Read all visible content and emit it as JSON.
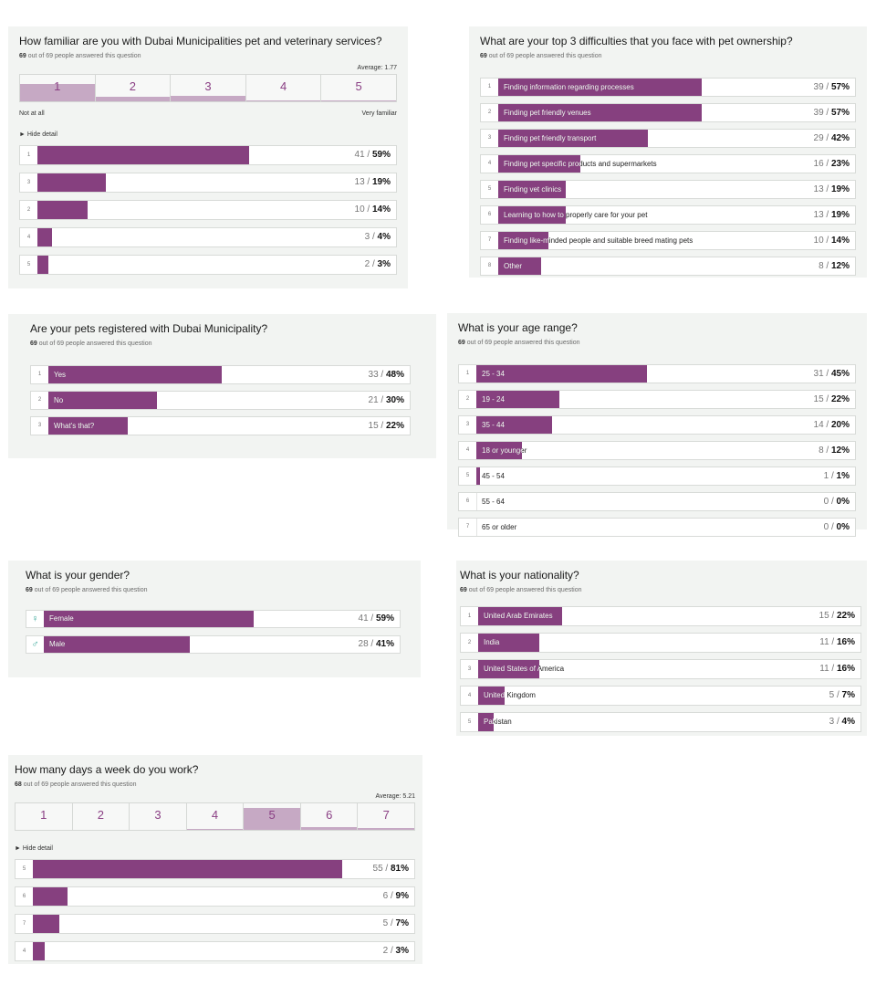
{
  "chart_data": [
    {
      "id": "familiarity",
      "type": "bar",
      "title": "How familiar are you with Dubai Municipalities pet and veterinary services?",
      "answered": "69",
      "answered_text": "out of 69 people answered this question",
      "average": "Average: 1.77",
      "scale": [
        "1",
        "2",
        "3",
        "4",
        "5"
      ],
      "scale_levels": [
        0.59,
        0.14,
        0.19,
        0.04,
        0.03
      ],
      "scale_low": "Not at all",
      "scale_high": "Very familiar",
      "hide_detail": "► Hide detail",
      "rows": [
        {
          "idx": "1",
          "label": "",
          "count": "41",
          "pct": "59%",
          "value": 59
        },
        {
          "idx": "3",
          "label": "",
          "count": "13",
          "pct": "19%",
          "value": 19
        },
        {
          "idx": "2",
          "label": "",
          "count": "10",
          "pct": "14%",
          "value": 14
        },
        {
          "idx": "4",
          "label": "",
          "count": "3",
          "pct": "4%",
          "value": 4
        },
        {
          "idx": "5",
          "label": "",
          "count": "2",
          "pct": "3%",
          "value": 3
        }
      ]
    },
    {
      "id": "difficulties",
      "type": "bar",
      "title": "What are your top 3 difficulties that you face with pet ownership?",
      "answered": "69",
      "answered_text": "out of 69 people answered this question",
      "rows": [
        {
          "idx": "1",
          "label": "Finding information regarding processes",
          "count": "39",
          "pct": "57%",
          "value": 57
        },
        {
          "idx": "2",
          "label": "Finding pet friendly venues",
          "count": "39",
          "pct": "57%",
          "value": 57
        },
        {
          "idx": "3",
          "label": "Finding pet friendly transport",
          "count": "29",
          "pct": "42%",
          "value": 42
        },
        {
          "idx": "4",
          "label": "Finding pet specific products and supermarkets",
          "count": "16",
          "pct": "23%",
          "value": 23
        },
        {
          "idx": "5",
          "label": "Finding vet clinics",
          "count": "13",
          "pct": "19%",
          "value": 19
        },
        {
          "idx": "6",
          "label": "Learning to how to properly care for your pet",
          "count": "13",
          "pct": "19%",
          "value": 19
        },
        {
          "idx": "7",
          "label": "Finding like-minded people and suitable breed mating pets",
          "count": "10",
          "pct": "14%",
          "value": 14
        },
        {
          "idx": "8",
          "label": "Other",
          "count": "8",
          "pct": "12%",
          "value": 12
        }
      ]
    },
    {
      "id": "registered",
      "type": "bar",
      "title": "Are your pets registered with Dubai Municipality?",
      "answered": "69",
      "answered_text": "out of 69 people answered this question",
      "rows": [
        {
          "idx": "1",
          "label": "Yes",
          "count": "33",
          "pct": "48%",
          "value": 48
        },
        {
          "idx": "2",
          "label": "No",
          "count": "21",
          "pct": "30%",
          "value": 30
        },
        {
          "idx": "3",
          "label": "What's that?",
          "count": "15",
          "pct": "22%",
          "value": 22
        }
      ]
    },
    {
      "id": "age",
      "type": "bar",
      "title": "What is your age range?",
      "answered": "69",
      "answered_text": "out of 69 people answered this question",
      "rows": [
        {
          "idx": "1",
          "label": "25 - 34",
          "count": "31",
          "pct": "45%",
          "value": 45
        },
        {
          "idx": "2",
          "label": "19 - 24",
          "count": "15",
          "pct": "22%",
          "value": 22
        },
        {
          "idx": "3",
          "label": "35 - 44",
          "count": "14",
          "pct": "20%",
          "value": 20
        },
        {
          "idx": "4",
          "label": "18 or younger",
          "count": "8",
          "pct": "12%",
          "value": 12
        },
        {
          "idx": "5",
          "label": "45 - 54",
          "count": "1",
          "pct": "1%",
          "value": 1
        },
        {
          "idx": "6",
          "label": "55 - 64",
          "count": "0",
          "pct": "0%",
          "value": 0
        },
        {
          "idx": "7",
          "label": "65 or older",
          "count": "0",
          "pct": "0%",
          "value": 0
        }
      ]
    },
    {
      "id": "gender",
      "type": "bar",
      "title": "What is your gender?",
      "answered": "69",
      "answered_text": "out of 69 people answered this question",
      "rows": [
        {
          "idx": "♀",
          "icon": "female-icon",
          "label": "Female",
          "count": "41",
          "pct": "59%",
          "value": 59
        },
        {
          "idx": "♂",
          "icon": "male-icon",
          "label": "Male",
          "count": "28",
          "pct": "41%",
          "value": 41
        }
      ]
    },
    {
      "id": "nationality",
      "type": "bar",
      "title": "What is your nationality?",
      "answered": "69",
      "answered_text": "out of 69 people answered this question",
      "rows": [
        {
          "idx": "1",
          "label": "United Arab Emirates",
          "count": "15",
          "pct": "22%",
          "value": 22
        },
        {
          "idx": "2",
          "label": "India",
          "count": "11",
          "pct": "16%",
          "value": 16
        },
        {
          "idx": "3",
          "label": "United States of America",
          "count": "11",
          "pct": "16%",
          "value": 16
        },
        {
          "idx": "4",
          "label": "United Kingdom",
          "count": "5",
          "pct": "7%",
          "value": 7
        },
        {
          "idx": "5",
          "label": "Pakistan",
          "count": "3",
          "pct": "4%",
          "value": 4
        }
      ]
    },
    {
      "id": "workdays",
      "type": "bar",
      "title": "How many days a week do you work?",
      "answered": "68",
      "answered_text": "out of 69 people answered this question",
      "average": "Average: 5.21",
      "scale": [
        "1",
        "2",
        "3",
        "4",
        "5",
        "6",
        "7"
      ],
      "scale_levels": [
        0,
        0,
        0,
        0.03,
        0.81,
        0.09,
        0.07
      ],
      "hide_detail": "► Hide detail",
      "rows": [
        {
          "idx": "5",
          "label": "",
          "count": "55",
          "pct": "81%",
          "value": 81
        },
        {
          "idx": "6",
          "label": "",
          "count": "6",
          "pct": "9%",
          "value": 9
        },
        {
          "idx": "7",
          "label": "",
          "count": "5",
          "pct": "7%",
          "value": 7
        },
        {
          "idx": "4",
          "label": "",
          "count": "2",
          "pct": "3%",
          "value": 3
        }
      ]
    }
  ],
  "colors": {
    "bar": "#86407f",
    "scale_fill": "#c6a9c4",
    "panel": "#f2f4f2",
    "accent_text": "#8a3f84"
  }
}
